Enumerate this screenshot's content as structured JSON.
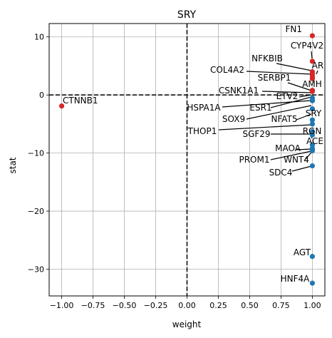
{
  "chart_data": {
    "type": "scatter",
    "title": "SRY",
    "xlabel": "weight",
    "ylabel": "stat",
    "xlim": [
      -1.1,
      1.1
    ],
    "ylim": [
      -34.6,
      12.3
    ],
    "xticks": [
      -1.0,
      -0.75,
      -0.5,
      -0.25,
      0.0,
      0.25,
      0.5,
      0.75,
      1.0
    ],
    "xtick_labels": [
      "−1.00",
      "−0.75",
      "−0.50",
      "−0.25",
      "0.00",
      "0.25",
      "0.50",
      "0.75",
      "1.00"
    ],
    "yticks": [
      -30,
      -20,
      -10,
      0,
      10
    ],
    "ytick_labels": [
      "−30",
      "−20",
      "−10",
      "0",
      "10"
    ],
    "grid": true,
    "reference_lines": {
      "x": 0,
      "y": 0
    },
    "colors": {
      "positive": "#d62728",
      "negative": "#1f77b4"
    },
    "points": [
      {
        "label": "FN1",
        "x": 1.0,
        "y": 10.2,
        "color": "#d62728"
      },
      {
        "label": "CYP4V2",
        "x": 1.0,
        "y": 5.8,
        "color": "#d62728"
      },
      {
        "label": "NFKBIB",
        "x": 1.0,
        "y": 4.0,
        "color": "#d62728"
      },
      {
        "label": "AR",
        "x": 1.0,
        "y": 3.7,
        "color": "#d62728"
      },
      {
        "label": "COL4A2",
        "x": 1.0,
        "y": 3.4,
        "color": "#d62728"
      },
      {
        "label": "SERBP1",
        "x": 1.0,
        "y": 3.0,
        "color": "#d62728"
      },
      {
        "label": "AMH",
        "x": 1.0,
        "y": 2.8,
        "color": "#d62728"
      },
      {
        "label": "CSNK1A1",
        "x": 1.0,
        "y": 0.8,
        "color": "#d62728"
      },
      {
        "label": "ETV2",
        "x": 1.0,
        "y": 0.6,
        "color": "#d62728"
      },
      {
        "label": "ESR1",
        "x": 1.0,
        "y": -0.5,
        "color": "#1f77b4"
      },
      {
        "label": "HSPA1A",
        "x": 1.0,
        "y": -0.9,
        "color": "#1f77b4"
      },
      {
        "label": "SOX9",
        "x": 1.0,
        "y": -1.0,
        "color": "#1f77b4"
      },
      {
        "label": "NFAT5",
        "x": 1.0,
        "y": -2.4,
        "color": "#1f77b4"
      },
      {
        "label": "SRY",
        "x": 1.0,
        "y": -4.3,
        "color": "#1f77b4"
      },
      {
        "label": "THOP1",
        "x": 1.0,
        "y": -5.0,
        "color": "#1f77b4"
      },
      {
        "label": "SGF29",
        "x": 1.0,
        "y": -6.3,
        "color": "#1f77b4"
      },
      {
        "label": "RGN",
        "x": 1.0,
        "y": -6.9,
        "color": "#1f77b4"
      },
      {
        "label": "ACE",
        "x": 1.0,
        "y": -8.6,
        "color": "#1f77b4"
      },
      {
        "label": "MAOA",
        "x": 1.0,
        "y": -9.2,
        "color": "#1f77b4"
      },
      {
        "label": "WNT4",
        "x": 1.0,
        "y": -9.4,
        "color": "#1f77b4"
      },
      {
        "label": "PROM1",
        "x": 1.0,
        "y": -9.6,
        "color": "#1f77b4"
      },
      {
        "label": "SDC4",
        "x": 1.0,
        "y": -12.2,
        "color": "#1f77b4"
      },
      {
        "label": "AGT",
        "x": 1.0,
        "y": -27.8,
        "color": "#1f77b4"
      },
      {
        "label": "HNF4A",
        "x": 1.0,
        "y": -32.4,
        "color": "#1f77b4"
      },
      {
        "label": "CTNNB1",
        "x": -1.0,
        "y": -1.9,
        "color": "#d62728"
      }
    ]
  }
}
